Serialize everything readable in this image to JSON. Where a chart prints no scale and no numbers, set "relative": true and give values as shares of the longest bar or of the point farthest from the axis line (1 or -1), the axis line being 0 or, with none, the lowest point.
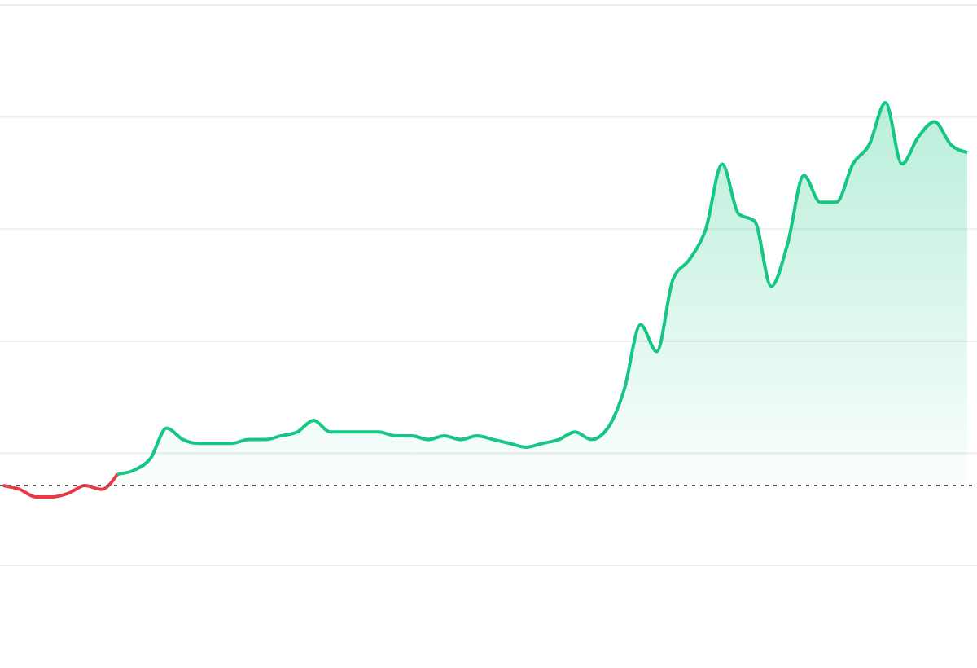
{
  "chart_data": {
    "type": "area",
    "relative": true,
    "grid": true,
    "categories": [
      null,
      null,
      null,
      null,
      null,
      null,
      null,
      null,
      null,
      null,
      null,
      null,
      null,
      null,
      null,
      null,
      null,
      null,
      null,
      null,
      null,
      null,
      null,
      null,
      null,
      null,
      null,
      null,
      null,
      null,
      null,
      null,
      null,
      null,
      null,
      null,
      null,
      null,
      null,
      null,
      null,
      null,
      null,
      null,
      null,
      null,
      null,
      null,
      null,
      null,
      null,
      null,
      null,
      null,
      null,
      null,
      null,
      null,
      null,
      null
    ],
    "series": [
      {
        "type": "line",
        "color": "#ea3943",
        "values": [
          0.0,
          -0.01,
          -0.03,
          -0.03,
          -0.02,
          0.0,
          -0.01,
          0.03,
          null,
          null,
          null,
          null,
          null,
          null,
          null,
          null,
          null,
          null,
          null,
          null,
          null,
          null,
          null,
          null,
          null,
          null,
          null,
          null,
          null,
          null,
          null,
          null,
          null,
          null,
          null,
          null,
          null,
          null,
          null,
          null,
          null,
          null,
          null,
          null,
          null,
          null,
          null,
          null,
          null,
          null,
          null,
          null,
          null,
          null,
          null,
          null,
          null,
          null,
          null,
          null
        ]
      },
      {
        "type": "area",
        "color": "#16c784",
        "values": [
          null,
          null,
          null,
          null,
          null,
          null,
          null,
          0.03,
          0.04,
          0.07,
          0.15,
          0.12,
          0.11,
          0.11,
          0.11,
          0.12,
          0.12,
          0.13,
          0.14,
          0.17,
          0.14,
          0.14,
          0.14,
          0.14,
          0.13,
          0.13,
          0.12,
          0.13,
          0.12,
          0.13,
          0.12,
          0.11,
          0.1,
          0.11,
          0.12,
          0.14,
          0.12,
          0.15,
          0.25,
          0.42,
          0.35,
          0.54,
          0.59,
          0.67,
          0.84,
          0.71,
          0.69,
          0.52,
          0.63,
          0.81,
          0.74,
          0.74,
          0.84,
          0.89,
          1.0,
          0.84,
          0.91,
          0.95,
          0.89,
          0.87
        ]
      }
    ],
    "ref_lines": [
      {
        "axis": "y",
        "value": 0,
        "line_style": "dotted",
        "color": "#555555"
      }
    ]
  }
}
